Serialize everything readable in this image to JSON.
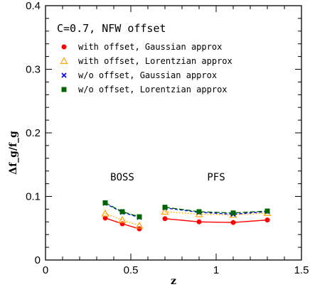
{
  "chart_data": {
    "type": "line",
    "title": "C=0.7, NFW offset",
    "xlabel": "z",
    "ylabel": "Δf_g/f_g",
    "xlim": [
      0,
      1.5
    ],
    "ylim": [
      0,
      0.4
    ],
    "x_ticks": [
      "0",
      "0.5",
      "1",
      "1.5"
    ],
    "y_ticks": [
      "0",
      "0.1",
      "0.2",
      "0.3",
      "0.4"
    ],
    "x_tick_values": [
      0,
      0.5,
      1,
      1.5
    ],
    "y_tick_values": [
      0,
      0.1,
      0.2,
      0.3,
      0.4
    ],
    "grid": false,
    "legend_position": "top-left",
    "annotations": [
      {
        "text": "BOSS",
        "x": 0.45,
        "y": 0.125
      },
      {
        "text": "PFS",
        "x": 1.0,
        "y": 0.125
      }
    ],
    "series": [
      {
        "name": "with offset, Gaussian approx",
        "color": "#ff0000",
        "marker": "circle",
        "line_style": "solid",
        "groups": [
          {
            "x": [
              0.35,
              0.45,
              0.55
            ],
            "y": [
              0.066,
              0.057,
              0.049
            ]
          },
          {
            "x": [
              0.7,
              0.9,
              1.1,
              1.3
            ],
            "y": [
              0.065,
              0.06,
              0.059,
              0.063
            ]
          }
        ]
      },
      {
        "name": "with offset, Lorentzian approx",
        "color": "#ffa500",
        "marker": "triangle-open",
        "line_style": "dotted",
        "groups": [
          {
            "x": [
              0.35,
              0.45,
              0.55
            ],
            "y": [
              0.073,
              0.063,
              0.054
            ]
          },
          {
            "x": [
              0.7,
              0.9,
              1.1,
              1.3
            ],
            "y": [
              0.076,
              0.072,
              0.071,
              0.074
            ]
          }
        ]
      },
      {
        "name": "w/o offset, Gaussian approx",
        "color": "#0000ff",
        "marker": "cross",
        "line_style": "dashed",
        "groups": [
          {
            "x": [
              0.35,
              0.45,
              0.55
            ],
            "y": [
              0.089,
              0.075,
              0.067
            ]
          },
          {
            "x": [
              0.7,
              0.9,
              1.1,
              1.3
            ],
            "y": [
              0.082,
              0.075,
              0.072,
              0.076
            ]
          }
        ]
      },
      {
        "name": "w/o offset, Lorentzian approx",
        "color": "#006400",
        "marker": "square",
        "line_style": "long-dashed",
        "groups": [
          {
            "x": [
              0.35,
              0.45,
              0.55
            ],
            "y": [
              0.09,
              0.076,
              0.068
            ]
          },
          {
            "x": [
              0.7,
              0.9,
              1.1,
              1.3
            ],
            "y": [
              0.083,
              0.076,
              0.074,
              0.077
            ]
          }
        ]
      }
    ]
  }
}
